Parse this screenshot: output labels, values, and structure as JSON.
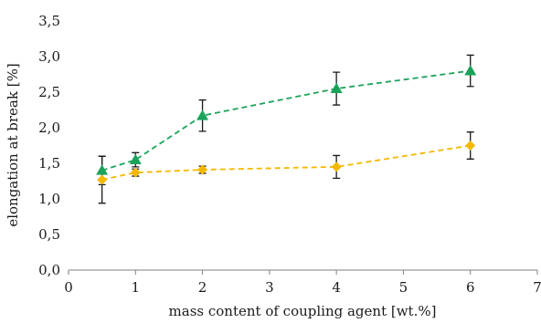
{
  "chart_data": {
    "type": "line",
    "xlabel": "mass content of coupling agent [wt.%]",
    "ylabel": "elongation at break [%]",
    "xlim": [
      0,
      7
    ],
    "ylim": [
      0,
      3.5
    ],
    "x_ticks": [
      "0",
      "1",
      "2",
      "3",
      "4",
      "5",
      "6",
      "7"
    ],
    "y_ticks": [
      "0,0",
      "0,5",
      "1,0",
      "1,5",
      "2,0",
      "2,5",
      "3,0",
      "3,5"
    ],
    "x_tick_values": [
      0,
      1,
      2,
      3,
      4,
      5,
      6,
      7
    ],
    "y_tick_values": [
      0,
      0.5,
      1.0,
      1.5,
      2.0,
      2.5,
      3.0,
      3.5
    ],
    "grid": false,
    "series": [
      {
        "marker": "triangle",
        "color": "#1aa35a",
        "line_style": "dashed",
        "x": [
          0.5,
          1,
          2,
          4,
          6
        ],
        "y": [
          1.4,
          1.55,
          2.17,
          2.55,
          2.8
        ],
        "err": [
          0.2,
          0.1,
          0.22,
          0.23,
          0.22
        ]
      },
      {
        "marker": "diamond",
        "color": "#f5b800",
        "line_style": "dashed",
        "x": [
          0.5,
          1,
          2,
          4,
          6
        ],
        "y": [
          1.27,
          1.37,
          1.41,
          1.45,
          1.75
        ],
        "err": [
          0.33,
          0.05,
          0.05,
          0.16,
          0.19
        ]
      }
    ]
  }
}
